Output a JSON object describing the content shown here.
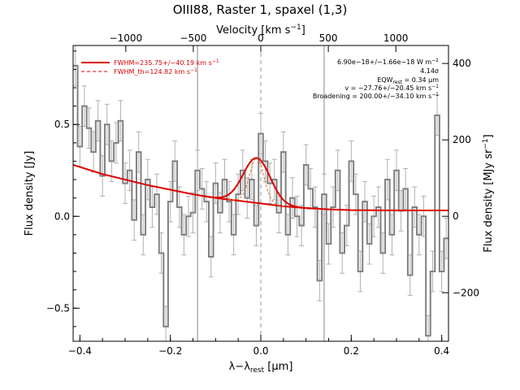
{
  "chart_data": {
    "type": "line",
    "title": "OIII88, Raster 1, spaxel (1,3)",
    "xlabel": "λ−λ",
    "xlabel_sub": "rest",
    "xlabel_unit_open": " [",
    "xlabel_unit": "μm",
    "xlabel_unit_close": "]",
    "ylabel": "Flux density [Jy]",
    "x2label": "Velocity [km s",
    "x2label_sup": "−1",
    "x2label_close": "]",
    "y2label": "Flux density [MJy sr",
    "y2label_sup": "−1",
    "y2label_close": "]",
    "xlim": [
      -0.415,
      0.415
    ],
    "ylim": [
      -0.68,
      0.93
    ],
    "x2lim": [
      -1390,
      1390
    ],
    "y2lim": [
      -327,
      447
    ],
    "xticks": [
      -0.4,
      -0.2,
      0.0,
      0.2,
      0.4
    ],
    "xtick_labels": [
      "−0.4",
      "−0.2",
      "0.0",
      "0.2",
      "0.4"
    ],
    "yticks": [
      -0.5,
      0.0,
      0.5
    ],
    "ytick_labels": [
      "−0.5",
      "0.0",
      "0.5"
    ],
    "x2ticks": [
      -1000,
      -500,
      0,
      500,
      1000
    ],
    "x2tick_labels": [
      "−1000",
      "−500",
      "0",
      "500",
      "1000"
    ],
    "y2ticks": [
      -200,
      0,
      200,
      400
    ],
    "y2tick_labels": [
      "−200",
      "0",
      "200",
      "400"
    ],
    "vlines": [
      -0.14,
      0.14
    ],
    "rest_line": 0.0,
    "spectrum": {
      "color": "#808080",
      "errcolor": "#b0b0b0",
      "x": [
        -0.41,
        -0.4,
        -0.39,
        -0.38,
        -0.37,
        -0.36,
        -0.35,
        -0.34,
        -0.33,
        -0.32,
        -0.31,
        -0.3,
        -0.29,
        -0.28,
        -0.27,
        -0.26,
        -0.25,
        -0.24,
        -0.23,
        -0.22,
        -0.21,
        -0.2,
        -0.19,
        -0.18,
        -0.17,
        -0.16,
        -0.15,
        -0.14,
        -0.13,
        -0.12,
        -0.11,
        -0.1,
        -0.09,
        -0.08,
        -0.07,
        -0.06,
        -0.05,
        -0.04,
        -0.03,
        -0.02,
        -0.01,
        0.0,
        0.01,
        0.02,
        0.03,
        0.04,
        0.05,
        0.06,
        0.07,
        0.08,
        0.09,
        0.1,
        0.11,
        0.12,
        0.13,
        0.14,
        0.15,
        0.16,
        0.17,
        0.18,
        0.19,
        0.2,
        0.21,
        0.22,
        0.23,
        0.24,
        0.25,
        0.26,
        0.27,
        0.28,
        0.29,
        0.3,
        0.31,
        0.32,
        0.33,
        0.34,
        0.35,
        0.36,
        0.37,
        0.38,
        0.39,
        0.4,
        0.41
      ],
      "y": [
        0.82,
        0.38,
        0.6,
        0.48,
        0.35,
        0.52,
        0.22,
        0.5,
        0.3,
        0.4,
        0.52,
        0.18,
        0.25,
        -0.02,
        0.35,
        -0.1,
        0.2,
        0.05,
        0.12,
        -0.2,
        -0.6,
        0.08,
        0.3,
        0.05,
        -0.1,
        0.0,
        0.02,
        0.25,
        0.15,
        0.08,
        -0.22,
        0.18,
        0.02,
        0.2,
        0.08,
        -0.1,
        0.12,
        0.25,
        0.1,
        0.2,
        -0.05,
        0.45,
        0.3,
        0.18,
        0.2,
        0.02,
        0.35,
        -0.1,
        0.1,
        0.0,
        -0.05,
        0.28,
        0.15,
        0.05,
        -0.35,
        0.12,
        -0.15,
        0.05,
        0.25,
        -0.2,
        -0.05,
        0.3,
        0.12,
        -0.3,
        0.08,
        -0.15,
        0.0,
        0.05,
        -0.2,
        0.2,
        -0.1,
        0.25,
        0.03,
        0.15,
        -0.32,
        0.05,
        -0.1,
        0.0,
        -0.65,
        -0.3,
        0.55,
        -0.3,
        -0.12
      ],
      "err": [
        0.11,
        0.11,
        0.11,
        0.11,
        0.11,
        0.11,
        0.11,
        0.11,
        0.11,
        0.11,
        0.11,
        0.11,
        0.11,
        0.11,
        0.11,
        0.11,
        0.11,
        0.11,
        0.11,
        0.11,
        0.11,
        0.11,
        0.11,
        0.11,
        0.11,
        0.11,
        0.11,
        0.11,
        0.11,
        0.11,
        0.11,
        0.11,
        0.11,
        0.11,
        0.11,
        0.11,
        0.11,
        0.11,
        0.11,
        0.11,
        0.11,
        0.11,
        0.11,
        0.11,
        0.11,
        0.11,
        0.11,
        0.11,
        0.11,
        0.11,
        0.11,
        0.11,
        0.11,
        0.11,
        0.11,
        0.11,
        0.11,
        0.11,
        0.11,
        0.11,
        0.11,
        0.11,
        0.11,
        0.11,
        0.11,
        0.11,
        0.11,
        0.11,
        0.11,
        0.11,
        0.11,
        0.11,
        0.11,
        0.11,
        0.11,
        0.11,
        0.11,
        0.11,
        0.11,
        0.11,
        0.11,
        0.11,
        0.11
      ]
    },
    "continuum": {
      "color": "#dd0000",
      "x": [
        -0.415,
        -0.35,
        -0.3,
        -0.25,
        -0.2,
        -0.15,
        -0.1,
        -0.05,
        0.0,
        0.05,
        0.1,
        0.15,
        0.2,
        0.3,
        0.4,
        0.415
      ],
      "y": [
        0.28,
        0.23,
        0.2,
        0.17,
        0.145,
        0.12,
        0.1,
        0.085,
        0.07,
        0.055,
        0.045,
        0.038,
        0.034,
        0.032,
        0.032,
        0.032
      ]
    },
    "fit": {
      "color": "#dd0000",
      "name": "FWHM=235.75+/−40.19 km s",
      "name_sup": "−1",
      "center": -0.009,
      "fwhm": 0.07,
      "peak": 0.245
    },
    "fit_th": {
      "color": "#e07020",
      "name": "FWHM_th=124.82 km s",
      "name_sup": "−1",
      "center": -0.009,
      "fwhm": 0.037,
      "peak": 0.245
    },
    "annotations": {
      "flux_value": "6.90e−18+/−1.66e−18 W m",
      "flux_sup": "−2",
      "sigma": "4.14σ",
      "eqw_pre": "EQW",
      "eqw_sub": "rest",
      "eqw_post": " = 0.34 μm",
      "vel": "v = −27.76+/−20.45 km s",
      "vel_sup": "−1",
      "broad": "Broadening = 200.00+/−34.10 km s",
      "broad_sup": "−1"
    }
  }
}
